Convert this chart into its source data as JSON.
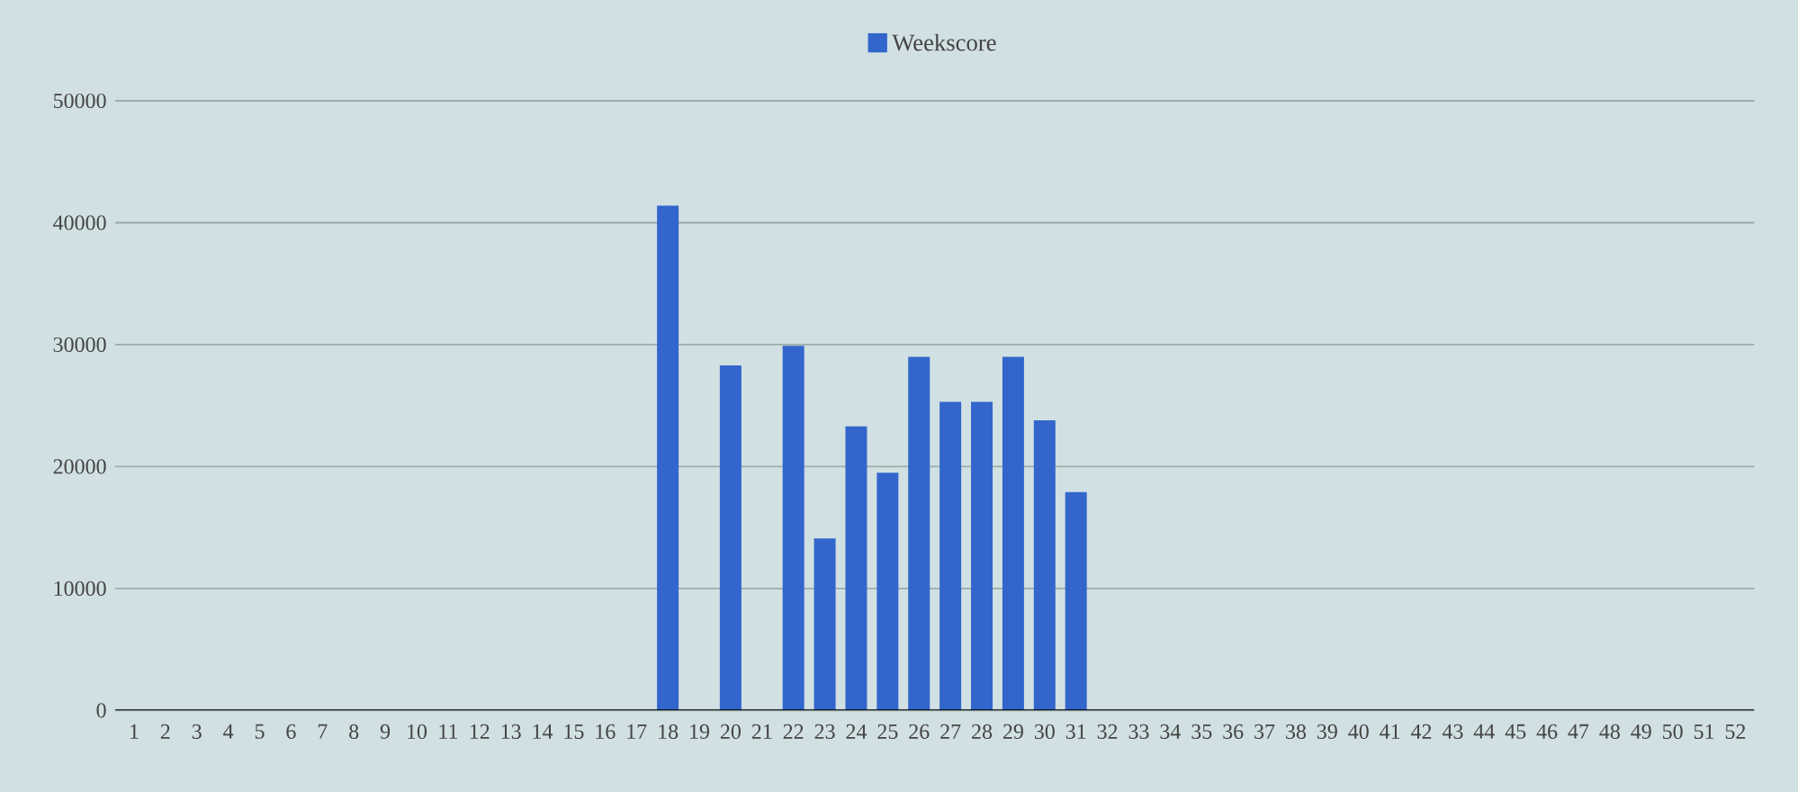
{
  "chart_data": {
    "type": "bar",
    "categories": [
      "1",
      "2",
      "3",
      "4",
      "5",
      "6",
      "7",
      "8",
      "9",
      "10",
      "11",
      "12",
      "13",
      "14",
      "15",
      "16",
      "17",
      "18",
      "19",
      "20",
      "21",
      "22",
      "23",
      "24",
      "25",
      "26",
      "27",
      "28",
      "29",
      "30",
      "31",
      "32",
      "33",
      "34",
      "35",
      "36",
      "37",
      "38",
      "39",
      "40",
      "41",
      "42",
      "43",
      "44",
      "45",
      "46",
      "47",
      "48",
      "49",
      "50",
      "51",
      "52"
    ],
    "series": [
      {
        "name": "Weekscore",
        "color": "#3366cc",
        "values": [
          0,
          0,
          0,
          0,
          0,
          0,
          0,
          0,
          0,
          0,
          0,
          0,
          0,
          0,
          0,
          0,
          0,
          41400,
          0,
          28300,
          0,
          29900,
          14100,
          23300,
          19500,
          29000,
          25300,
          25300,
          29000,
          23800,
          17900,
          0,
          0,
          0,
          0,
          0,
          0,
          0,
          0,
          0,
          0,
          0,
          0,
          0,
          0,
          0,
          0,
          0,
          0,
          0,
          0,
          0
        ]
      }
    ],
    "ylim": [
      0,
      50000
    ],
    "yticks": [
      0,
      10000,
      20000,
      30000,
      40000,
      50000
    ],
    "grid": "y",
    "legend": "top"
  }
}
